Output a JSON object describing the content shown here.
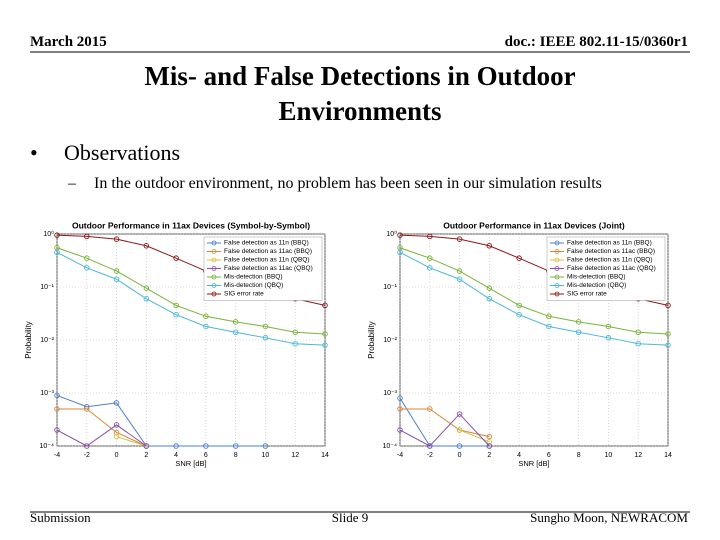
{
  "header": {
    "date": "March 2015",
    "doc": "doc.: IEEE 802.11-15/0360r1"
  },
  "title": [
    "Mis- and False Detections in Outdoor",
    "Environments"
  ],
  "bullet": "Observations",
  "sub_bullet": "In the outdoor environment, no problem has been seen in our simulation results",
  "chart_data": [
    {
      "type": "line",
      "title": "Outdoor Performance in 11ax Devices (Symbol-by-Symbol)",
      "x_label": "SNR [dB]",
      "y_label": "Probability",
      "log_y": true,
      "grid": true,
      "legend": "upper right",
      "x": [
        -4,
        -2,
        0,
        2,
        4,
        6,
        8,
        10,
        12,
        14
      ],
      "xlim": [
        -4,
        14
      ],
      "xticks": [
        -4,
        -2,
        0,
        2,
        4,
        6,
        8,
        10,
        12,
        14
      ],
      "ylim": [
        0.0001,
        1
      ],
      "yticks": [
        {
          "value": 0.0001,
          "label": "10⁻⁴"
        },
        {
          "value": 0.001,
          "label": "10⁻³"
        },
        {
          "value": 0.01,
          "label": "10⁻²"
        },
        {
          "value": 0.1,
          "label": "10⁻¹"
        },
        {
          "value": 1,
          "label": "10⁰"
        }
      ],
      "series": [
        {
          "name": "False detection as 11n (BBQ)",
          "color": "#4a7fd0",
          "values": [
            0.0009,
            0.00055,
            0.00065,
            0.0001,
            0.0001,
            0.0001,
            0.0001,
            0.0001,
            null,
            null
          ]
        },
        {
          "name": "False detection as 11ac (BBQ)",
          "color": "#d4873a",
          "values": [
            0.0005,
            0.0005,
            0.00018,
            0.0001,
            null,
            null,
            null,
            null,
            null,
            null
          ]
        },
        {
          "name": "False detection as 11n (QBQ)",
          "color": "#d8c040",
          "values": [
            null,
            null,
            0.00015,
            0.0001,
            null,
            null,
            null,
            null,
            null,
            null
          ]
        },
        {
          "name": "False detection as 11ac (QBQ)",
          "color": "#8a4fa8",
          "values": [
            0.0002,
            0.0001,
            0.00025,
            0.0001,
            null,
            null,
            null,
            null,
            null,
            null
          ]
        },
        {
          "name": "Mis-detection (BBQ)",
          "color": "#7ab33a",
          "values": [
            0.55,
            0.35,
            0.2,
            0.095,
            0.045,
            0.028,
            0.022,
            0.018,
            0.014,
            0.013
          ]
        },
        {
          "name": "Mis-detection (QBQ)",
          "color": "#4ab8d8",
          "values": [
            0.45,
            0.23,
            0.14,
            0.06,
            0.03,
            0.018,
            0.014,
            0.011,
            0.0085,
            0.008
          ]
        },
        {
          "name": "SIG error rate",
          "color": "#8b1a1a",
          "values": [
            0.95,
            0.9,
            0.8,
            0.6,
            0.35,
            0.2,
            0.12,
            0.08,
            0.06,
            0.045
          ]
        }
      ]
    },
    {
      "type": "line",
      "title": "Outdoor Performance in 11ax Devices (Joint)",
      "x_label": "SNR [dB]",
      "y_label": "Probability",
      "log_y": true,
      "grid": true,
      "legend": "upper right",
      "x": [
        -4,
        -2,
        0,
        2,
        4,
        6,
        8,
        10,
        12,
        14
      ],
      "xlim": [
        -4,
        14
      ],
      "xticks": [
        -4,
        -2,
        0,
        2,
        4,
        6,
        8,
        10,
        12,
        14
      ],
      "ylim": [
        0.0001,
        1
      ],
      "yticks": [
        {
          "value": 0.0001,
          "label": "10⁻⁴"
        },
        {
          "value": 0.001,
          "label": "10⁻³"
        },
        {
          "value": 0.01,
          "label": "10⁻²"
        },
        {
          "value": 0.1,
          "label": "10⁻¹"
        },
        {
          "value": 1,
          "label": "10⁰"
        }
      ],
      "series": [
        {
          "name": "False detection as 11n (BBQ)",
          "color": "#4a7fd0",
          "values": [
            0.0008,
            0.0001,
            0.0001,
            0.0001,
            null,
            null,
            null,
            null,
            null,
            null
          ]
        },
        {
          "name": "False detection as 11ac (BBQ)",
          "color": "#d4873a",
          "values": [
            0.0005,
            0.0005,
            0.0002,
            0.00015,
            null,
            null,
            null,
            null,
            null,
            null
          ]
        },
        {
          "name": "False detection as 11n (QBQ)",
          "color": "#d8c040",
          "values": [
            null,
            null,
            0.0002,
            0.00012,
            null,
            null,
            null,
            null,
            null,
            null
          ]
        },
        {
          "name": "False detection as 11ac (QBQ)",
          "color": "#8a4fa8",
          "values": [
            0.0002,
            0.0001,
            0.0004,
            0.0001,
            null,
            null,
            null,
            null,
            null,
            null
          ]
        },
        {
          "name": "Mis-detection (BBQ)",
          "color": "#7ab33a",
          "values": [
            0.55,
            0.35,
            0.2,
            0.095,
            0.045,
            0.028,
            0.022,
            0.018,
            0.014,
            0.013
          ]
        },
        {
          "name": "Mis-detection (QBQ)",
          "color": "#4ab8d8",
          "values": [
            0.45,
            0.23,
            0.14,
            0.06,
            0.03,
            0.018,
            0.014,
            0.011,
            0.0085,
            0.008
          ]
        },
        {
          "name": "SIG error rate",
          "color": "#8b1a1a",
          "values": [
            0.95,
            0.9,
            0.8,
            0.6,
            0.35,
            0.2,
            0.12,
            0.08,
            0.06,
            0.045
          ]
        }
      ]
    }
  ],
  "footer": {
    "left": "Submission",
    "center": "Slide 9",
    "right": "Sungho Moon, NEWRACOM"
  }
}
